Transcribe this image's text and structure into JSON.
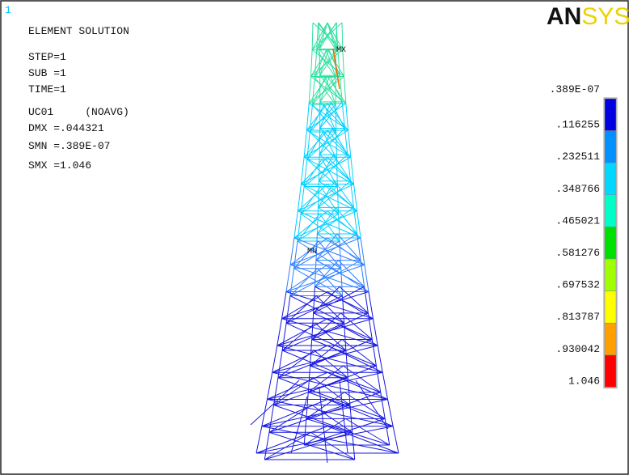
{
  "window_number": "1",
  "logo": {
    "part1": "AN",
    "part2": "SYS"
  },
  "info": [
    "ELEMENT SOLUTION",
    "STEP=1",
    "SUB =1",
    "TIME=1",
    "UC01     (NOAVG)",
    "DMX =.044321",
    "SMN =.389E-07",
    "SMX =1.046"
  ],
  "markers": {
    "max": "MX",
    "min": "MN"
  },
  "legend": {
    "labels": [
      ".389E-07",
      ".116255",
      ".232511",
      ".348766",
      ".465021",
      ".581276",
      ".697532",
      ".813787",
      ".930042",
      "1.046"
    ],
    "colors": [
      "#0000e0",
      "#0090ff",
      "#00d8ff",
      "#00ffc8",
      "#00e000",
      "#a0ff00",
      "#ffff00",
      "#ffa000",
      "#ff0000"
    ]
  }
}
